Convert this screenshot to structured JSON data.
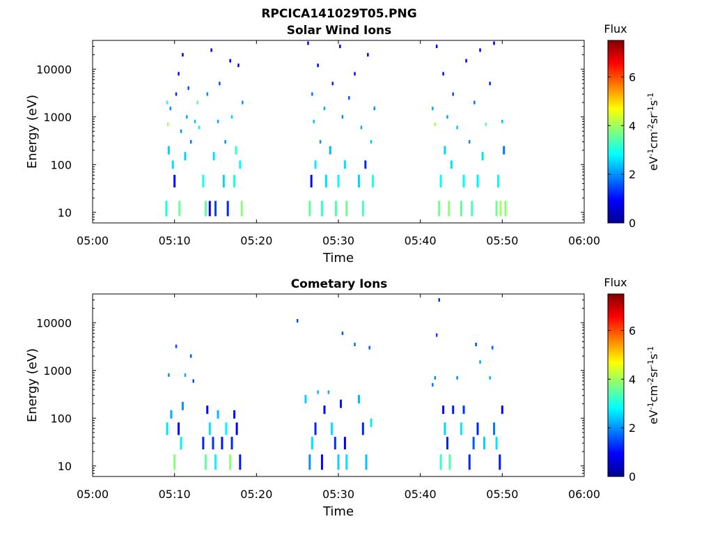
{
  "figure_title": "RPCICA141029T05.PNG",
  "colorbar": {
    "title": "Flux",
    "ticks": [
      "0",
      "2",
      "4",
      "6"
    ],
    "range": [
      0,
      7.5
    ],
    "colormap": "jet"
  },
  "chart_data": [
    {
      "type": "heatmap",
      "title": "Solar Wind Ions",
      "xlabel": "Time",
      "ylabel": "Energy (eV)",
      "xlim": [
        "05:00",
        "06:00"
      ],
      "xticks": [
        "05:00",
        "05:10",
        "05:20",
        "05:30",
        "05:40",
        "05:50",
        "06:00"
      ],
      "ylim": [
        6,
        40000
      ],
      "yscale": "log",
      "yticks": [
        "10",
        "100",
        "1000",
        "10000"
      ],
      "zlabel": "eV-1cm-2sr-1s-1",
      "z_range": [
        0,
        7.5
      ],
      "active_intervals": [
        [
          "05:09",
          "05:19"
        ],
        [
          "05:26",
          "05:35"
        ],
        [
          "05:41",
          "05:51"
        ]
      ],
      "points": [
        [
          9.0,
          12,
          3
        ],
        [
          9.1,
          2000,
          3
        ],
        [
          9.2,
          700,
          4
        ],
        [
          9.3,
          200,
          2.5
        ],
        [
          9.5,
          1500,
          2
        ],
        [
          9.8,
          100,
          2.6
        ],
        [
          10.0,
          45,
          1
        ],
        [
          10.2,
          3000,
          1.3
        ],
        [
          10.5,
          8000,
          0.8
        ],
        [
          10.6,
          12,
          3.6
        ],
        [
          10.8,
          500,
          2
        ],
        [
          11.0,
          20000,
          0.7
        ],
        [
          11.3,
          150,
          2.5
        ],
        [
          11.5,
          1000,
          2.2
        ],
        [
          11.7,
          4000,
          1.5
        ],
        [
          12.0,
          300,
          1.8
        ],
        [
          12.5,
          800,
          2.4
        ],
        [
          12.8,
          2000,
          3.5
        ],
        [
          13.0,
          600,
          2.8
        ],
        [
          13.5,
          45,
          3
        ],
        [
          13.8,
          12,
          3.5
        ],
        [
          14.0,
          3000,
          2
        ],
        [
          14.3,
          12,
          0.9
        ],
        [
          14.5,
          25000,
          0.6
        ],
        [
          14.8,
          150,
          2.6
        ],
        [
          15.0,
          12,
          1.4
        ],
        [
          15.3,
          800,
          2.2
        ],
        [
          15.5,
          5000,
          1.5
        ],
        [
          16.0,
          45,
          2.5
        ],
        [
          16.2,
          300,
          2
        ],
        [
          16.5,
          12,
          1.2
        ],
        [
          16.8,
          15000,
          0.8
        ],
        [
          17.0,
          1000,
          2.5
        ],
        [
          17.3,
          45,
          3
        ],
        [
          17.5,
          200,
          3.2
        ],
        [
          17.8,
          12000,
          0.7
        ],
        [
          18.0,
          100,
          2.8
        ],
        [
          18.2,
          12,
          3.8
        ],
        [
          18.3,
          2000,
          2
        ],
        [
          26.3,
          35000,
          0.6
        ],
        [
          26.5,
          12,
          3.5
        ],
        [
          26.7,
          45,
          1
        ],
        [
          26.8,
          3000,
          1.8
        ],
        [
          27.0,
          800,
          2.4
        ],
        [
          27.2,
          100,
          2.7
        ],
        [
          27.5,
          12000,
          0.8
        ],
        [
          27.8,
          300,
          2
        ],
        [
          28.0,
          12,
          3.2
        ],
        [
          28.3,
          1500,
          2.2
        ],
        [
          28.5,
          45,
          2.6
        ],
        [
          29.0,
          200,
          2.3
        ],
        [
          29.3,
          5000,
          1.2
        ],
        [
          29.7,
          12,
          3.4
        ],
        [
          30.0,
          45,
          2.8
        ],
        [
          30.2,
          30000,
          0.7
        ],
        [
          30.5,
          1000,
          2
        ],
        [
          30.8,
          100,
          2.6
        ],
        [
          31.0,
          12,
          3.6
        ],
        [
          31.3,
          2500,
          1.6
        ],
        [
          32.0,
          8000,
          1
        ],
        [
          32.5,
          45,
          2.5
        ],
        [
          32.8,
          600,
          2.2
        ],
        [
          33.0,
          12,
          3.3
        ],
        [
          33.3,
          100,
          1.2
        ],
        [
          33.6,
          20000,
          0.8
        ],
        [
          34.0,
          300,
          2.4
        ],
        [
          34.2,
          45,
          3
        ],
        [
          34.4,
          1500,
          2
        ],
        [
          41.5,
          1500,
          2.2
        ],
        [
          41.8,
          700,
          4
        ],
        [
          42.0,
          30000,
          0.8
        ],
        [
          42.3,
          12,
          3.6
        ],
        [
          42.5,
          45,
          2.8
        ],
        [
          42.8,
          8000,
          1
        ],
        [
          43.0,
          200,
          2.5
        ],
        [
          43.3,
          1000,
          2.2
        ],
        [
          43.5,
          12,
          3.8
        ],
        [
          43.8,
          100,
          2.6
        ],
        [
          44.0,
          3000,
          1.5
        ],
        [
          44.5,
          600,
          2.4
        ],
        [
          45.0,
          12,
          3.5
        ],
        [
          45.3,
          45,
          2.8
        ],
        [
          45.6,
          15000,
          0.9
        ],
        [
          46.0,
          300,
          2
        ],
        [
          46.3,
          12,
          3.3
        ],
        [
          46.6,
          2000,
          1.8
        ],
        [
          47.0,
          45,
          2.7
        ],
        [
          47.3,
          25000,
          0.7
        ],
        [
          47.6,
          150,
          2.6
        ],
        [
          48.0,
          700,
          3.5
        ],
        [
          48.5,
          5000,
          1.2
        ],
        [
          49.0,
          35000,
          0.6
        ],
        [
          49.3,
          12,
          3.6
        ],
        [
          49.5,
          45,
          2.8
        ],
        [
          49.8,
          12,
          4
        ],
        [
          50.0,
          800,
          2.4
        ],
        [
          50.2,
          200,
          1.8
        ],
        [
          50.4,
          12,
          3.8
        ]
      ]
    },
    {
      "type": "heatmap",
      "title": "Cometary Ions",
      "xlabel": "Time",
      "ylabel": "Energy (eV)",
      "xlim": [
        "05:00",
        "06:00"
      ],
      "xticks": [
        "05:00",
        "05:10",
        "05:20",
        "05:30",
        "05:40",
        "05:50",
        "06:00"
      ],
      "ylim": [
        6,
        40000
      ],
      "yscale": "log",
      "yticks": [
        "10",
        "100",
        "1000",
        "10000"
      ],
      "zlabel": "eV-1cm-2sr-1s-1",
      "z_range": [
        0,
        7.5
      ],
      "active_intervals": [
        [
          "05:09",
          "05:18"
        ],
        [
          "05:26",
          "05:35"
        ],
        [
          "05:41",
          "05:51"
        ]
      ],
      "points": [
        [
          9.1,
          60,
          2.6
        ],
        [
          9.3,
          800,
          2
        ],
        [
          9.6,
          120,
          2.2
        ],
        [
          10.0,
          12,
          3.8
        ],
        [
          10.2,
          3200,
          1.5
        ],
        [
          10.5,
          60,
          1
        ],
        [
          10.8,
          30,
          2.7
        ],
        [
          11.0,
          180,
          2
        ],
        [
          11.3,
          800,
          2.2
        ],
        [
          12.0,
          2000,
          1.6
        ],
        [
          12.3,
          600,
          1.5
        ],
        [
          13.5,
          30,
          1.2
        ],
        [
          13.8,
          12,
          3.5
        ],
        [
          14.0,
          150,
          1
        ],
        [
          14.3,
          60,
          2.6
        ],
        [
          14.7,
          30,
          1.3
        ],
        [
          15.0,
          12,
          2.8
        ],
        [
          15.3,
          120,
          2.3
        ],
        [
          15.8,
          30,
          1.1
        ],
        [
          16.3,
          60,
          2.8
        ],
        [
          16.8,
          12,
          3.8
        ],
        [
          17.0,
          30,
          1.2
        ],
        [
          17.3,
          120,
          1
        ],
        [
          17.6,
          60,
          0.9
        ],
        [
          18.0,
          12,
          1.1
        ],
        [
          25.0,
          11000,
          1.5
        ],
        [
          26.0,
          250,
          2.5
        ],
        [
          26.5,
          12,
          2
        ],
        [
          26.8,
          30,
          2.6
        ],
        [
          27.2,
          60,
          1.2
        ],
        [
          27.5,
          350,
          2.3
        ],
        [
          28.0,
          12,
          1
        ],
        [
          28.3,
          150,
          0.9
        ],
        [
          28.8,
          350,
          2.2
        ],
        [
          29.2,
          60,
          2.6
        ],
        [
          29.6,
          30,
          1.3
        ],
        [
          30.0,
          12,
          2.5
        ],
        [
          30.3,
          200,
          1.1
        ],
        [
          30.5,
          6000,
          1.6
        ],
        [
          30.8,
          30,
          0.9
        ],
        [
          31.0,
          12,
          2.6
        ],
        [
          32.0,
          3500,
          1.8
        ],
        [
          32.5,
          250,
          2.3
        ],
        [
          33.0,
          60,
          1.2
        ],
        [
          33.4,
          12,
          2.4
        ],
        [
          33.8,
          3000,
          1.6
        ],
        [
          34.0,
          80,
          2.7
        ],
        [
          41.5,
          500,
          1.8
        ],
        [
          41.8,
          700,
          2
        ],
        [
          42.0,
          5500,
          1.5
        ],
        [
          42.3,
          30000,
          1.3
        ],
        [
          42.5,
          12,
          3.2
        ],
        [
          42.8,
          150,
          0.9
        ],
        [
          43.0,
          60,
          2.5
        ],
        [
          43.3,
          30,
          1.2
        ],
        [
          43.6,
          12,
          3.4
        ],
        [
          44.0,
          150,
          1.1
        ],
        [
          44.5,
          700,
          2
        ],
        [
          45.0,
          60,
          2.7
        ],
        [
          45.3,
          150,
          1.3
        ],
        [
          46.0,
          12,
          1.2
        ],
        [
          46.5,
          30,
          1.6
        ],
        [
          46.8,
          3500,
          1.5
        ],
        [
          47.0,
          60,
          1.2
        ],
        [
          47.3,
          1500,
          2.2
        ],
        [
          47.8,
          30,
          2.5
        ],
        [
          48.5,
          700,
          2.3
        ],
        [
          48.8,
          3000,
          1.6
        ],
        [
          49.0,
          60,
          1.8
        ],
        [
          49.3,
          30,
          2.6
        ],
        [
          49.7,
          12,
          1.1
        ],
        [
          50.0,
          150,
          0.9
        ]
      ]
    }
  ]
}
